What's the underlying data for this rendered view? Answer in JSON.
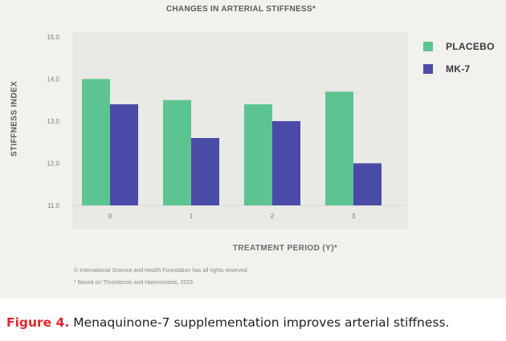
{
  "chart_data": {
    "type": "bar",
    "title": "CHANGES IN ARTERIAL STIFFNESS*",
    "xlabel": "TREATMENT PERIOD (Y)*",
    "ylabel": "STIFFNESS INDEX",
    "categories": [
      "0",
      "1",
      "2",
      "3"
    ],
    "ylim": [
      11.0,
      15.0
    ],
    "yticks": [
      "15.0",
      "14.0",
      "13.0",
      "12.0",
      "11.0"
    ],
    "grid": false,
    "legend_position": "right",
    "series": [
      {
        "name": "PLACEBO",
        "color": "#5cc490",
        "values": [
          14.0,
          13.5,
          13.4,
          13.7
        ]
      },
      {
        "name": "MK-7",
        "color": "#4a4ba6",
        "values": [
          13.4,
          12.6,
          13.0,
          12.0
        ]
      }
    ]
  },
  "notes": {
    "copyright": "© International Science and Health Foundation has all rights reserved",
    "source": "* Based on Thrombosis and Haemostasis, 2015"
  },
  "caption": {
    "figure_label": "Figure 4.",
    "text": " Menaquinone-7 supplementation improves arterial stiffness."
  },
  "colors": {
    "panel_background": "#f1f1ee",
    "plot_background": "#e9e9e6",
    "caption_label": "#e0262b"
  }
}
